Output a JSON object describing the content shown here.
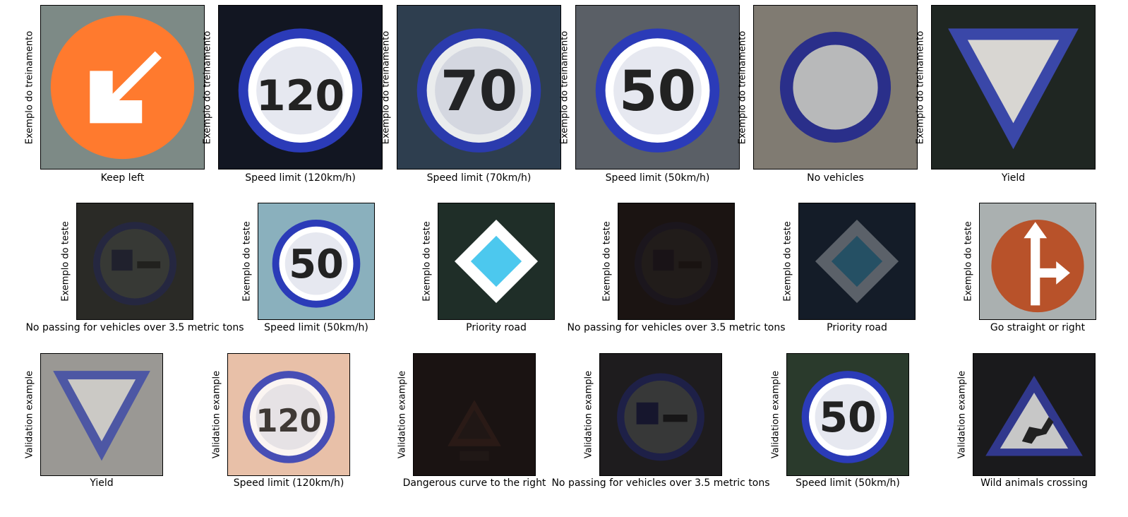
{
  "rows": [
    {
      "row_label": "Exemplo do treinamento",
      "items": [
        {
          "caption": "Keep left",
          "sign": "keep-left"
        },
        {
          "caption": "Speed limit (120km/h)",
          "sign": "speed-limit",
          "number": "120"
        },
        {
          "caption": "Speed limit (70km/h)",
          "sign": "speed-limit",
          "number": "70"
        },
        {
          "caption": "Speed limit (50km/h)",
          "sign": "speed-limit",
          "number": "50"
        },
        {
          "caption": "No vehicles",
          "sign": "no-vehicles"
        },
        {
          "caption": "Yield",
          "sign": "yield"
        }
      ]
    },
    {
      "row_label": "Exemplo do teste",
      "items": [
        {
          "caption": "No passing for vehicles over 3.5 metric tons",
          "sign": "no-passing-trucks"
        },
        {
          "caption": "Speed limit (50km/h)",
          "sign": "speed-limit",
          "number": "50"
        },
        {
          "caption": "Priority road",
          "sign": "priority-road"
        },
        {
          "caption": "No passing for vehicles over 3.5 metric tons",
          "sign": "no-passing-trucks"
        },
        {
          "caption": "Priority road",
          "sign": "priority-road"
        },
        {
          "caption": "Go straight or right",
          "sign": "go-straight-or-right"
        }
      ]
    },
    {
      "row_label": "Validation example",
      "items": [
        {
          "caption": "Yield",
          "sign": "yield"
        },
        {
          "caption": "Speed limit (120km/h)",
          "sign": "speed-limit",
          "number": "120"
        },
        {
          "caption": "Dangerous curve to the right",
          "sign": "dangerous-curve-right"
        },
        {
          "caption": "No passing for vehicles over 3.5 metric tons",
          "sign": "no-passing-trucks"
        },
        {
          "caption": "Speed limit (50km/h)",
          "sign": "speed-limit",
          "number": "50"
        },
        {
          "caption": "Wild animals crossing",
          "sign": "wild-animals-crossing"
        }
      ]
    }
  ]
}
